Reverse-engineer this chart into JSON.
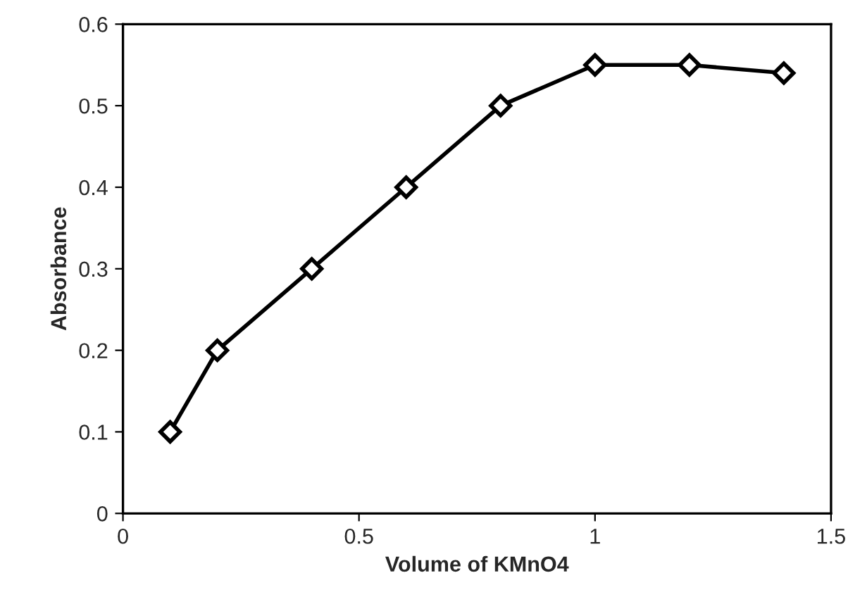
{
  "chart_data": {
    "type": "line",
    "xlabel": "Volume of KMnO4",
    "ylabel": "Absorbance",
    "x": [
      0.1,
      0.2,
      0.4,
      0.6,
      0.8,
      1.0,
      1.2,
      1.4
    ],
    "series": [
      {
        "color": "#000000",
        "values": [
          0.1,
          0.2,
          0.3,
          0.4,
          0.5,
          0.55,
          0.55,
          0.54
        ]
      }
    ],
    "xlim": [
      0,
      1.5
    ],
    "xticks": [
      0,
      0.5,
      1,
      1.5
    ],
    "ylim": [
      0,
      0.6
    ],
    "yticks": [
      0,
      0.1,
      0.2,
      0.3,
      0.4,
      0.5,
      0.6
    ],
    "marker": "diamond",
    "line_style": "solid",
    "grid": false,
    "legend": false
  }
}
